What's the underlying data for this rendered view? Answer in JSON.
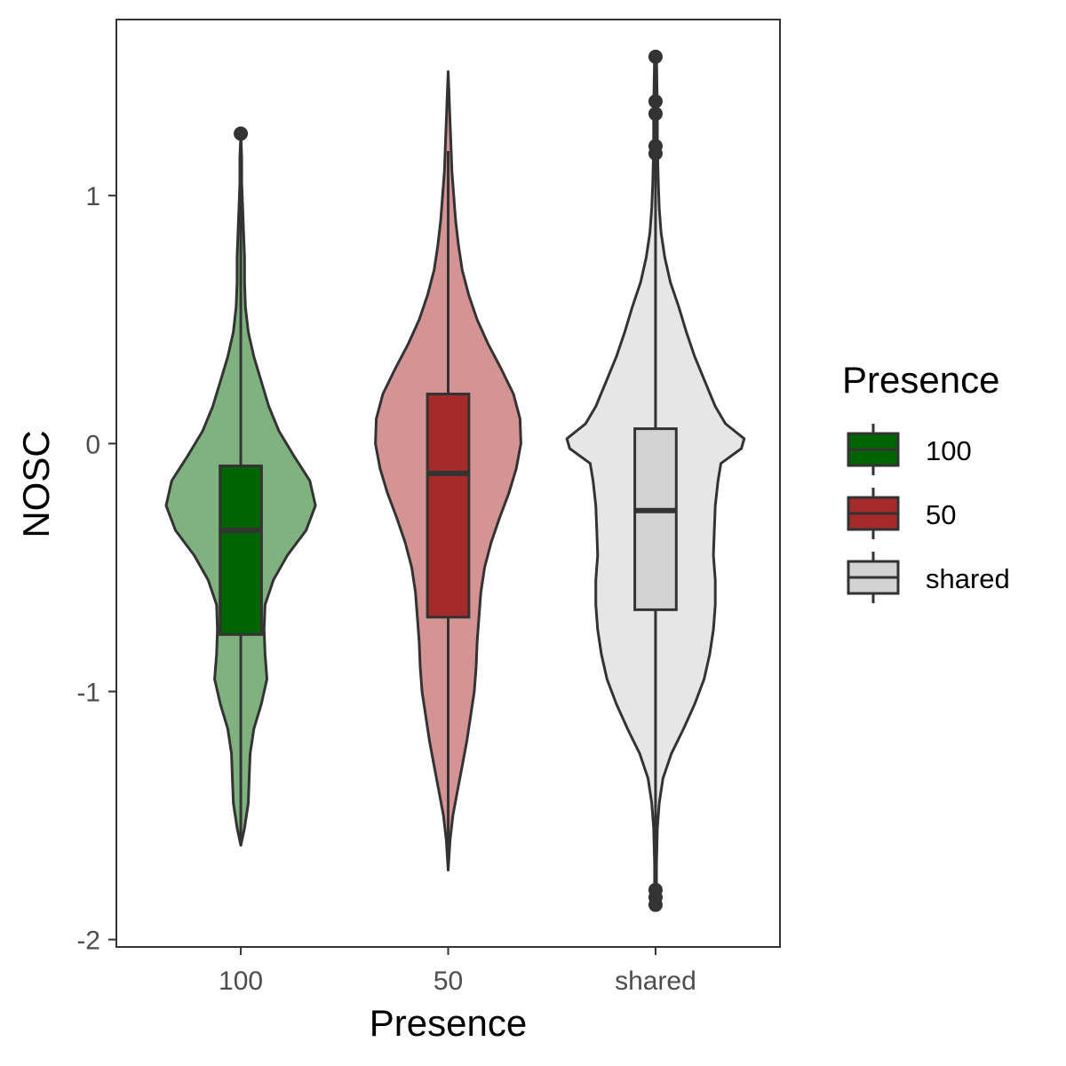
{
  "chart_data": {
    "type": "violin",
    "title": "",
    "xlabel": "Presence",
    "ylabel": "NOSC",
    "ylim": [
      -2.03,
      1.71
    ],
    "yticks": [
      -2,
      -1,
      0,
      1
    ],
    "ytick_labels": [
      "-2",
      "-1",
      "0",
      "1"
    ],
    "categories": [
      "100",
      "50",
      "shared"
    ],
    "grid": false,
    "legend": {
      "title": "Presence",
      "position": "right",
      "entries": [
        "100",
        "50",
        "shared"
      ]
    },
    "series": [
      {
        "name": "100",
        "box_color": "#006400",
        "violin_color": "#7fb27f",
        "min": -1.62,
        "q1": -0.77,
        "median": -0.35,
        "q3": -0.09,
        "max": 0.85,
        "outliers": [
          1.25
        ],
        "violin_max": 1.25,
        "density": [
          [
            -1.62,
            0.0
          ],
          [
            -1.55,
            0.04
          ],
          [
            -1.45,
            0.08
          ],
          [
            -1.35,
            0.09
          ],
          [
            -1.25,
            0.1
          ],
          [
            -1.15,
            0.14
          ],
          [
            -1.05,
            0.22
          ],
          [
            -0.95,
            0.28
          ],
          [
            -0.85,
            0.26
          ],
          [
            -0.75,
            0.25
          ],
          [
            -0.65,
            0.26
          ],
          [
            -0.55,
            0.35
          ],
          [
            -0.45,
            0.5
          ],
          [
            -0.35,
            0.7
          ],
          [
            -0.25,
            0.8
          ],
          [
            -0.15,
            0.74
          ],
          [
            -0.05,
            0.57
          ],
          [
            0.05,
            0.41
          ],
          [
            0.15,
            0.3
          ],
          [
            0.25,
            0.22
          ],
          [
            0.35,
            0.14
          ],
          [
            0.45,
            0.08
          ],
          [
            0.55,
            0.05
          ],
          [
            0.65,
            0.04
          ],
          [
            0.75,
            0.04
          ],
          [
            0.85,
            0.03
          ],
          [
            0.95,
            0.02
          ],
          [
            1.05,
            0.01
          ],
          [
            1.15,
            0.01
          ],
          [
            1.25,
            0.0
          ]
        ]
      },
      {
        "name": "50",
        "box_color": "#a52a2a",
        "violin_color": "#d49494",
        "min": -1.72,
        "q1": -0.7,
        "median": -0.12,
        "q3": 0.2,
        "max": 1.18,
        "outliers": [],
        "violin_max": 1.5,
        "density": [
          [
            -1.72,
            0.0
          ],
          [
            -1.6,
            0.02
          ],
          [
            -1.5,
            0.05
          ],
          [
            -1.4,
            0.1
          ],
          [
            -1.3,
            0.15
          ],
          [
            -1.2,
            0.2
          ],
          [
            -1.1,
            0.24
          ],
          [
            -1.0,
            0.28
          ],
          [
            -0.9,
            0.3
          ],
          [
            -0.8,
            0.31
          ],
          [
            -0.7,
            0.33
          ],
          [
            -0.6,
            0.35
          ],
          [
            -0.5,
            0.39
          ],
          [
            -0.4,
            0.46
          ],
          [
            -0.3,
            0.55
          ],
          [
            -0.2,
            0.65
          ],
          [
            -0.1,
            0.73
          ],
          [
            0.0,
            0.78
          ],
          [
            0.1,
            0.77
          ],
          [
            0.2,
            0.7
          ],
          [
            0.3,
            0.57
          ],
          [
            0.4,
            0.43
          ],
          [
            0.5,
            0.31
          ],
          [
            0.6,
            0.22
          ],
          [
            0.7,
            0.15
          ],
          [
            0.8,
            0.11
          ],
          [
            0.9,
            0.08
          ],
          [
            1.0,
            0.06
          ],
          [
            1.1,
            0.04
          ],
          [
            1.2,
            0.03
          ],
          [
            1.3,
            0.02
          ],
          [
            1.4,
            0.01
          ],
          [
            1.5,
            0.0
          ]
        ]
      },
      {
        "name": "shared",
        "box_color": "#d3d3d3",
        "violin_color": "#e6e6e6",
        "min": -1.45,
        "q1": -0.67,
        "median": -0.27,
        "q3": 0.06,
        "max": 0.95,
        "outliers": [
          1.56,
          1.38,
          1.33,
          1.2,
          1.17,
          -1.8,
          -1.83,
          -1.86
        ],
        "violin_max": 1.56,
        "violin_min": -1.86,
        "density": [
          [
            -1.86,
            0.01
          ],
          [
            -1.7,
            0.01
          ],
          [
            -1.55,
            0.02
          ],
          [
            -1.45,
            0.04
          ],
          [
            -1.35,
            0.08
          ],
          [
            -1.25,
            0.17
          ],
          [
            -1.15,
            0.3
          ],
          [
            -1.05,
            0.42
          ],
          [
            -0.95,
            0.52
          ],
          [
            -0.85,
            0.58
          ],
          [
            -0.75,
            0.62
          ],
          [
            -0.65,
            0.64
          ],
          [
            -0.55,
            0.64
          ],
          [
            -0.45,
            0.62
          ],
          [
            -0.35,
            0.63
          ],
          [
            -0.25,
            0.64
          ],
          [
            -0.15,
            0.67
          ],
          [
            -0.08,
            0.7
          ],
          [
            -0.02,
            0.92
          ],
          [
            0.02,
            0.95
          ],
          [
            0.08,
            0.75
          ],
          [
            0.15,
            0.64
          ],
          [
            0.25,
            0.53
          ],
          [
            0.35,
            0.42
          ],
          [
            0.45,
            0.33
          ],
          [
            0.55,
            0.25
          ],
          [
            0.65,
            0.16
          ],
          [
            0.75,
            0.1
          ],
          [
            0.85,
            0.06
          ],
          [
            0.95,
            0.04
          ],
          [
            1.05,
            0.03
          ],
          [
            1.2,
            0.02
          ],
          [
            1.35,
            0.02
          ],
          [
            1.56,
            0.01
          ]
        ]
      }
    ]
  }
}
